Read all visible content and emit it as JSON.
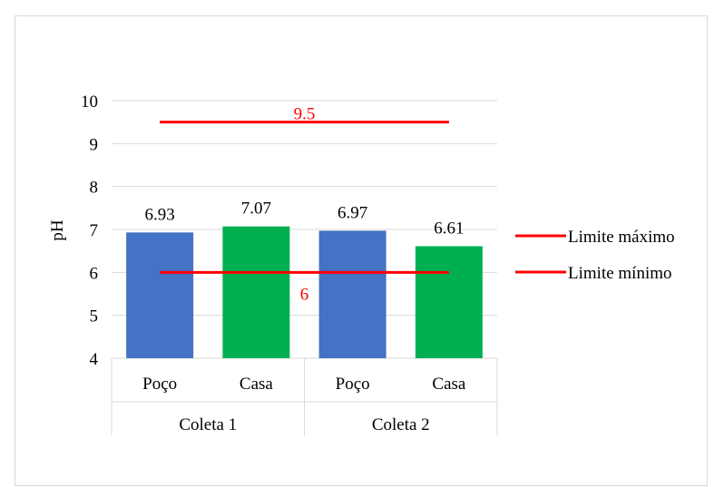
{
  "chart_data": {
    "type": "bar",
    "ylabel": "pH",
    "ylim": [
      4,
      10
    ],
    "yticks": [
      "4",
      "5",
      "6",
      "7",
      "8",
      "9",
      "10"
    ],
    "grid": true,
    "groups": [
      {
        "label": "Coleta 1",
        "categories": [
          "Poço",
          "Casa"
        ]
      },
      {
        "label": "Coleta 2",
        "categories": [
          "Poço",
          "Casa"
        ]
      }
    ],
    "bars": [
      {
        "group": "Coleta 1",
        "category": "Poço",
        "value": 6.93,
        "label": "6.93",
        "color": "#4472c4"
      },
      {
        "group": "Coleta 1",
        "category": "Casa",
        "value": 7.07,
        "label": "7.07",
        "color": "#00b050"
      },
      {
        "group": "Coleta 2",
        "category": "Poço",
        "value": 6.97,
        "label": "6.97",
        "color": "#4472c4"
      },
      {
        "group": "Coleta 2",
        "category": "Casa",
        "value": 6.61,
        "label": "6.61",
        "color": "#00b050"
      }
    ],
    "reference_lines": [
      {
        "name": "Limite máximo",
        "value": 9.5,
        "label": "9.5",
        "color": "#ff0000"
      },
      {
        "name": "Limite mínimo",
        "value": 6,
        "label": "6",
        "color": "#ff0000"
      }
    ],
    "legend_position": "right"
  }
}
